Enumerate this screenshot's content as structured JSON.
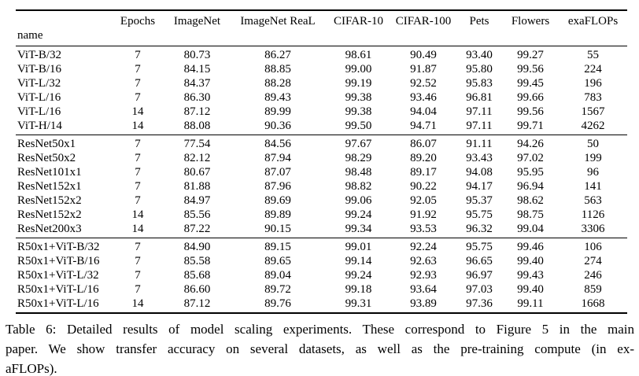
{
  "table": {
    "columns": [
      "name",
      "Epochs",
      "ImageNet",
      "ImageNet ReaL",
      "CIFAR-10",
      "CIFAR-100",
      "Pets",
      "Flowers",
      "exaFLOPs"
    ],
    "groups": [
      {
        "rows": [
          [
            "ViT-B/32",
            "7",
            "80.73",
            "86.27",
            "98.61",
            "90.49",
            "93.40",
            "99.27",
            "55"
          ],
          [
            "ViT-B/16",
            "7",
            "84.15",
            "88.85",
            "99.00",
            "91.87",
            "95.80",
            "99.56",
            "224"
          ],
          [
            "ViT-L/32",
            "7",
            "84.37",
            "88.28",
            "99.19",
            "92.52",
            "95.83",
            "99.45",
            "196"
          ],
          [
            "ViT-L/16",
            "7",
            "86.30",
            "89.43",
            "99.38",
            "93.46",
            "96.81",
            "99.66",
            "783"
          ],
          [
            "ViT-L/16",
            "14",
            "87.12",
            "89.99",
            "99.38",
            "94.04",
            "97.11",
            "99.56",
            "1567"
          ],
          [
            "ViT-H/14",
            "14",
            "88.08",
            "90.36",
            "99.50",
            "94.71",
            "97.11",
            "99.71",
            "4262"
          ]
        ]
      },
      {
        "rows": [
          [
            "ResNet50x1",
            "7",
            "77.54",
            "84.56",
            "97.67",
            "86.07",
            "91.11",
            "94.26",
            "50"
          ],
          [
            "ResNet50x2",
            "7",
            "82.12",
            "87.94",
            "98.29",
            "89.20",
            "93.43",
            "97.02",
            "199"
          ],
          [
            "ResNet101x1",
            "7",
            "80.67",
            "87.07",
            "98.48",
            "89.17",
            "94.08",
            "95.95",
            "96"
          ],
          [
            "ResNet152x1",
            "7",
            "81.88",
            "87.96",
            "98.82",
            "90.22",
            "94.17",
            "96.94",
            "141"
          ],
          [
            "ResNet152x2",
            "7",
            "84.97",
            "89.69",
            "99.06",
            "92.05",
            "95.37",
            "98.62",
            "563"
          ],
          [
            "ResNet152x2",
            "14",
            "85.56",
            "89.89",
            "99.24",
            "91.92",
            "95.75",
            "98.75",
            "1126"
          ],
          [
            "ResNet200x3",
            "14",
            "87.22",
            "90.15",
            "99.34",
            "93.53",
            "96.32",
            "99.04",
            "3306"
          ]
        ]
      },
      {
        "rows": [
          [
            "R50x1+ViT-B/32",
            "7",
            "84.90",
            "89.15",
            "99.01",
            "92.24",
            "95.75",
            "99.46",
            "106"
          ],
          [
            "R50x1+ViT-B/16",
            "7",
            "85.58",
            "89.65",
            "99.14",
            "92.63",
            "96.65",
            "99.40",
            "274"
          ],
          [
            "R50x1+ViT-L/32",
            "7",
            "85.68",
            "89.04",
            "99.24",
            "92.93",
            "96.97",
            "99.43",
            "246"
          ],
          [
            "R50x1+ViT-L/16",
            "7",
            "86.60",
            "89.72",
            "99.18",
            "93.64",
            "97.03",
            "99.40",
            "859"
          ],
          [
            "R50x1+ViT-L/16",
            "14",
            "87.12",
            "89.76",
            "99.31",
            "93.89",
            "97.36",
            "99.11",
            "1668"
          ]
        ]
      }
    ]
  },
  "caption": {
    "lines": [
      "Table 6: Detailed results of model scaling experiments. These correspond to Figure 5 in the main",
      "paper. We show transfer accuracy on several datasets, as well as the pre-training compute (in ex-",
      "aFLOPs)."
    ]
  }
}
